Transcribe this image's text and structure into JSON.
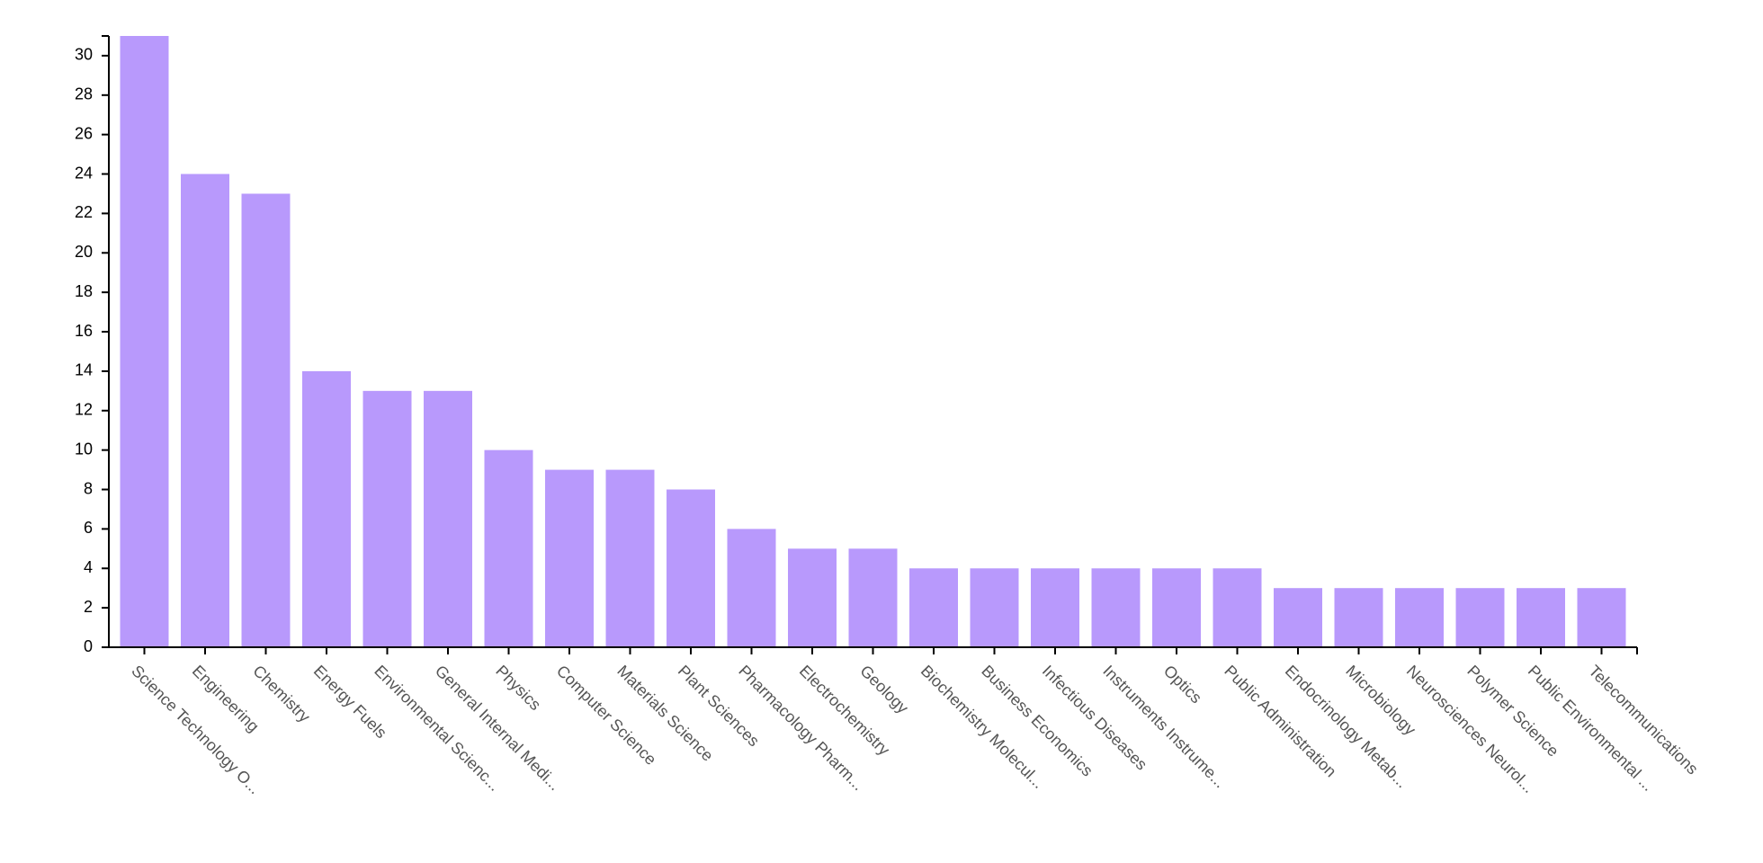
{
  "chart_data": {
    "type": "bar",
    "categories": [
      "Science Technology O...",
      "Engineering",
      "Chemistry",
      "Energy Fuels",
      "Environmental Scienc...",
      "General Internal Medi...",
      "Physics",
      "Computer Science",
      "Materials Science",
      "Plant Sciences",
      "Pharmacology Pharm...",
      "Electrochemistry",
      "Geology",
      "Biochemistry Molecul...",
      "Business Economics",
      "Infectious Diseases",
      "Instruments Instrume...",
      "Optics",
      "Public Administration",
      "Endocrinology Metab...",
      "Microbiology",
      "Neurosciences Neurol...",
      "Polymer Science",
      "Public Environmental ...",
      "Telecommunications"
    ],
    "values": [
      31,
      24,
      23,
      14,
      13,
      13,
      10,
      9,
      9,
      8,
      6,
      5,
      5,
      4,
      4,
      4,
      4,
      4,
      4,
      3,
      3,
      3,
      3,
      3,
      3
    ],
    "yticks": [
      0,
      2,
      4,
      6,
      8,
      10,
      12,
      14,
      16,
      18,
      20,
      22,
      24,
      26,
      28,
      30
    ],
    "ylim": [
      0,
      31
    ],
    "bar_color": "#b899fc",
    "grid": false,
    "title": "",
    "xlabel": "",
    "ylabel": ""
  }
}
